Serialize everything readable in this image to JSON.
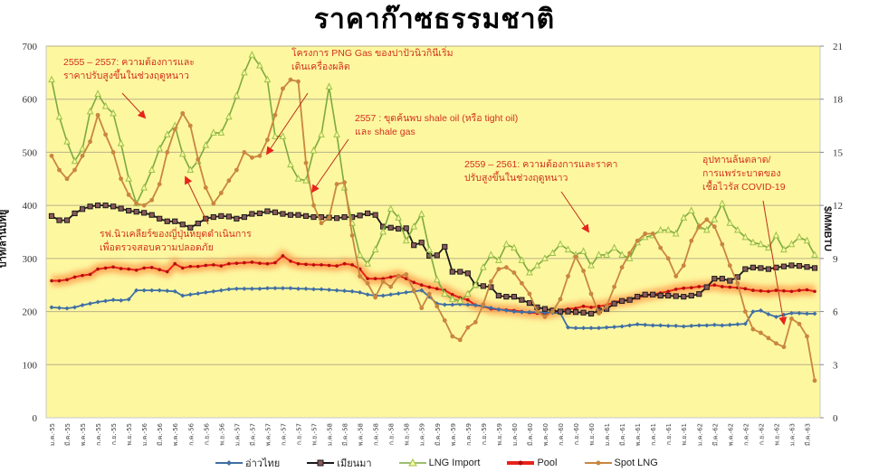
{
  "title": "ราคาก๊าซธรรมชาติ",
  "colors": {
    "plot_bg": "#fdf7a0",
    "grid": "#b9b28a",
    "gulf_thai": "#3f6fa3",
    "myanmar": "#1a1a1a",
    "lng_import": "#7caa3f",
    "pool": "#e8231a",
    "pool_glow": "#ff9a4a",
    "spot_lng": "#c9863f",
    "annotation": "#d2301a"
  },
  "chart_data": {
    "type": "line",
    "title": "ราคาก๊าซธรรมชาติ",
    "ylabel": "บาท/ล้านบีทียู",
    "ylabel_right": "$/MMBTU",
    "ylim": [
      0,
      700
    ],
    "ylim_right": [
      0,
      21
    ],
    "yticks": [
      0,
      100,
      200,
      300,
      400,
      500,
      600,
      700
    ],
    "yticks_right": [
      0,
      3,
      6,
      9,
      12,
      15,
      18,
      21
    ],
    "grid": true,
    "legend_position": "bottom",
    "x_tick_labels": [
      "ม.ค.-55",
      "มี.ค.-55",
      "พ.ค.-55",
      "ก.ค.-55",
      "ก.ย.-55",
      "พ.ย.-55",
      "ม.ค.-56",
      "มี.ค.-56",
      "พ.ค.-56",
      "ก.ค.-56",
      "ก.ย.-56",
      "พ.ย.-56",
      "ม.ค.-57",
      "มี.ค.-57",
      "พ.ค.-57",
      "ก.ค.-57",
      "ก.ย.-57",
      "พ.ย.-57",
      "ม.ค.-58",
      "มี.ค.-58",
      "พ.ค.-58",
      "ก.ค.-58",
      "ก.ย.-58",
      "พ.ย.-58",
      "ม.ค.-59",
      "มี.ค.-59",
      "พ.ค.-59",
      "ก.ค.-59",
      "ก.ย.-59",
      "พ.ย.-59",
      "ม.ค.-60",
      "มี.ค.-60",
      "พ.ค.-60",
      "ก.ค.-60",
      "ก.ย.-60",
      "พ.ย.-60",
      "ม.ค.-61",
      "มี.ค.-61",
      "พ.ค.-61",
      "ก.ค.-61",
      "ก.ย.-61",
      "พ.ย.-61",
      "ม.ค.-62",
      "มี.ค.-62",
      "พ.ค.-62",
      "ก.ค.-62",
      "ก.ย.-62",
      "พ.ย.-62",
      "ม.ค.-63",
      "มี.ค.-63"
    ],
    "n_points": 100,
    "series": [
      {
        "name": "อ่าวไทย",
        "axis": "left",
        "marker": "diamond",
        "values": [
          208,
          207,
          206,
          208,
          212,
          215,
          218,
          220,
          222,
          221,
          223,
          240,
          240,
          240,
          240,
          239,
          238,
          230,
          232,
          234,
          236,
          238,
          240,
          242,
          243,
          243,
          243,
          243,
          244,
          244,
          244,
          244,
          243,
          243,
          242,
          242,
          241,
          240,
          239,
          238,
          236,
          232,
          230,
          230,
          232,
          234,
          236,
          238,
          240,
          228,
          215,
          213,
          213,
          214,
          213,
          212,
          210,
          207,
          204,
          202,
          200,
          199,
          199,
          199,
          198,
          198,
          197,
          170,
          169,
          169,
          169,
          169,
          170,
          171,
          172,
          174,
          176,
          175,
          174,
          174,
          173,
          173,
          172,
          173,
          174,
          174,
          175,
          174,
          175,
          176,
          177,
          200,
          202,
          195,
          190,
          194,
          197,
          197,
          196,
          196
        ]
      },
      {
        "name": "เมียนมา",
        "axis": "left",
        "marker": "square",
        "values": [
          380,
          372,
          372,
          385,
          393,
          398,
          400,
          400,
          398,
          394,
          390,
          388,
          386,
          382,
          375,
          370,
          370,
          364,
          358,
          366,
          375,
          378,
          380,
          379,
          375,
          378,
          384,
          385,
          389,
          387,
          384,
          382,
          382,
          380,
          378,
          378,
          377,
          376,
          378,
          378,
          381,
          385,
          382,
          360,
          358,
          356,
          357,
          325,
          330,
          305,
          306,
          322,
          275,
          275,
          272,
          250,
          248,
          246,
          230,
          228,
          228,
          222,
          216,
          208,
          205,
          202,
          200,
          200,
          199,
          198,
          196,
          202,
          205,
          215,
          220,
          222,
          228,
          232,
          232,
          230,
          230,
          229,
          228,
          230,
          233,
          246,
          262,
          262,
          258,
          265,
          280,
          283,
          282,
          280,
          283,
          285,
          287,
          286,
          284,
          282
        ]
      },
      {
        "name": "LNG Import",
        "axis": "right",
        "marker": "triangle",
        "values": [
          19.1,
          17.0,
          15.6,
          14.5,
          15.2,
          17.3,
          18.3,
          17.6,
          17.2,
          15.5,
          13.5,
          12.1,
          13.0,
          14.0,
          15.2,
          16.0,
          16.5,
          14.9,
          14.0,
          14.5,
          15.4,
          16.1,
          16.1,
          17.0,
          18.2,
          19.5,
          20.5,
          19.9,
          19.1,
          15.9,
          15.9,
          14.3,
          13.5,
          13.4,
          15.1,
          16.0,
          18.7,
          16.0,
          13.0,
          11.0,
          9.2,
          8.7,
          9.5,
          10.5,
          11.8,
          11.3,
          10.0,
          10.8,
          11.5,
          9.5,
          7.8,
          7.0,
          6.7,
          6.6,
          7.0,
          7.5,
          8.5,
          9.2,
          8.9,
          9.8,
          9.6,
          8.9,
          8.2,
          8.6,
          9.0,
          9.3,
          9.8,
          9.5,
          9.2,
          9.4,
          8.6,
          9.2,
          9.2,
          9.6,
          9.2,
          9.0,
          9.9,
          10.2,
          10.3,
          10.6,
          10.6,
          10.4,
          11.3,
          11.7,
          10.8,
          10.6,
          11.2,
          12.1,
          11.0,
          10.6,
          10.2,
          9.9,
          9.8,
          9.6,
          10.3,
          9.5,
          9.8,
          10.2,
          10.0,
          9.2
        ]
      },
      {
        "name": "Pool",
        "axis": "left",
        "marker": "circle-glow",
        "values": [
          258,
          258,
          260,
          265,
          268,
          270,
          280,
          282,
          284,
          281,
          280,
          278,
          282,
          283,
          279,
          275,
          290,
          282,
          285,
          285,
          287,
          288,
          286,
          290,
          291,
          292,
          293,
          291,
          290,
          292,
          305,
          295,
          290,
          289,
          288,
          288,
          287,
          286,
          290,
          288,
          280,
          262,
          262,
          262,
          265,
          268,
          262,
          255,
          250,
          246,
          243,
          240,
          232,
          226,
          222,
          212,
          210,
          205,
          204,
          203,
          202,
          200,
          198,
          197,
          196,
          198,
          202,
          205,
          206,
          210,
          208,
          210,
          212,
          218,
          220,
          222,
          226,
          230,
          232,
          235,
          238,
          242,
          244,
          245,
          247,
          248,
          250,
          247,
          246,
          245,
          243,
          240,
          239,
          238,
          240,
          239,
          238,
          240,
          241,
          238
        ]
      },
      {
        "name": "Spot LNG",
        "axis": "right",
        "marker": "circle",
        "values": [
          14.8,
          14.0,
          13.5,
          14.0,
          14.8,
          15.6,
          17.1,
          16.0,
          15.0,
          13.5,
          12.6,
          12.1,
          12.0,
          12.3,
          13.2,
          15.0,
          16.3,
          17.2,
          16.5,
          14.6,
          13.0,
          12.1,
          12.7,
          13.4,
          14.0,
          15.0,
          14.7,
          14.8,
          15.7,
          17.1,
          18.6,
          19.1,
          19.0,
          14.4,
          12.0,
          11.0,
          11.3,
          13.2,
          13.3,
          10.3,
          8.0,
          7.6,
          6.8,
          7.7,
          7.4,
          8.0,
          8.1,
          7.2,
          6.2,
          7.0,
          6.3,
          5.5,
          4.6,
          4.4,
          5.1,
          5.4,
          6.4,
          7.7,
          8.4,
          8.5,
          8.2,
          7.6,
          7.0,
          6.0,
          5.7,
          6.0,
          6.7,
          8.0,
          9.1,
          8.3,
          7.0,
          5.9,
          6.3,
          7.4,
          8.5,
          9.3,
          10.0,
          10.4,
          10.4,
          9.6,
          9.0,
          8.0,
          8.6,
          10.0,
          10.8,
          11.2,
          10.8,
          9.8,
          8.6,
          7.6,
          6.0,
          5.0,
          4.8,
          4.5,
          4.2,
          4.0,
          5.6,
          5.3,
          4.6,
          2.1
        ]
      }
    ]
  },
  "annotations": [
    {
      "id": "winter-2555",
      "lines": [
        "2555  –  2557:  ความต้องการและ",
        "ราคาปรับสูงขึ้นในช่วงฤดูหนาว"
      ]
    },
    {
      "id": "png-gas",
      "lines": [
        "โครงการ  PNG  Gas  ของปาปัวนิวกินีเริ่ม",
        "เดินเครื่องผลิต"
      ]
    },
    {
      "id": "shale",
      "lines": [
        "2557  :  ขุดค้นพบ   shale  oil  (หรือ  tight  oil)",
        "และ  shale  gas"
      ]
    },
    {
      "id": "winter-2559",
      "lines": [
        "2559  –  2561:  ความต้องการและราคา",
        "ปรับสูงขึ้นในช่วงฤดูหนาว"
      ]
    },
    {
      "id": "covid",
      "lines": [
        "อุปทานล้นตลาด/",
        "การแพร่ระบาดของ",
        "เชื้อไวรัส  COVID-19"
      ]
    },
    {
      "id": "fukushima",
      "lines": [
        "รฟ.นิวเคลียร์ของญี่ปุ่นหยุดดำเนินการ",
        "เพื่อตรวจสอบความปลอดภัย"
      ]
    }
  ],
  "legend": [
    {
      "label": "อ่าวไทย"
    },
    {
      "label": "เมียนมา"
    },
    {
      "label": "LNG Import"
    },
    {
      "label": "Pool"
    },
    {
      "label": "Spot LNG"
    }
  ]
}
